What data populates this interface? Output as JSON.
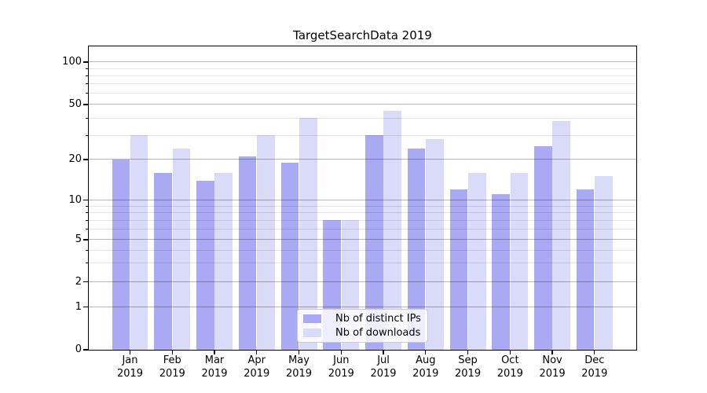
{
  "title": "TargetSearchData 2019",
  "colors": {
    "ips": "#a9a9f4",
    "downloads": "#dadaf9",
    "spine": "#000000",
    "grid_major": "#b5b5b5",
    "grid_minor": "#e5e5e5",
    "legend_border": "#cccccc"
  },
  "legend": {
    "items": [
      {
        "label": "Nb of distinct IPs",
        "color_key": "ips"
      },
      {
        "label": "Nb of downloads",
        "color_key": "downloads"
      }
    ]
  },
  "y_axis": {
    "major_ticks": [
      0,
      1,
      2,
      5,
      10,
      20,
      50,
      100
    ],
    "minor_ticks": [
      3,
      4,
      6,
      7,
      8,
      9,
      30,
      40,
      60,
      70,
      80,
      90
    ]
  },
  "x_axis": {
    "categories": [
      {
        "month": "Jan",
        "year": "2019"
      },
      {
        "month": "Feb",
        "year": "2019"
      },
      {
        "month": "Mar",
        "year": "2019"
      },
      {
        "month": "Apr",
        "year": "2019"
      },
      {
        "month": "May",
        "year": "2019"
      },
      {
        "month": "Jun",
        "year": "2019"
      },
      {
        "month": "Jul",
        "year": "2019"
      },
      {
        "month": "Aug",
        "year": "2019"
      },
      {
        "month": "Sep",
        "year": "2019"
      },
      {
        "month": "Oct",
        "year": "2019"
      },
      {
        "month": "Nov",
        "year": "2019"
      },
      {
        "month": "Dec",
        "year": "2019"
      }
    ]
  },
  "chart_data": {
    "type": "bar",
    "title": "TargetSearchData 2019",
    "categories": [
      "Jan 2019",
      "Feb 2019",
      "Mar 2019",
      "Apr 2019",
      "May 2019",
      "Jun 2019",
      "Jul 2019",
      "Aug 2019",
      "Sep 2019",
      "Oct 2019",
      "Nov 2019",
      "Dec 2019"
    ],
    "series": [
      {
        "name": "Nb of distinct IPs",
        "values": [
          20,
          16,
          14,
          21,
          19,
          7,
          30,
          24,
          12,
          11,
          25,
          12
        ]
      },
      {
        "name": "Nb of downloads",
        "values": [
          30,
          24,
          16,
          30,
          40,
          7,
          45,
          28,
          16,
          16,
          38,
          15
        ]
      }
    ],
    "xlabel": "",
    "ylabel": "",
    "yscale": "symlog",
    "ylim": [
      0,
      130
    ],
    "ytick_labels": [
      "0",
      "1",
      "2",
      "5",
      "10",
      "20",
      "50",
      "100"
    ],
    "grid": true,
    "legend_position": "lower center"
  }
}
